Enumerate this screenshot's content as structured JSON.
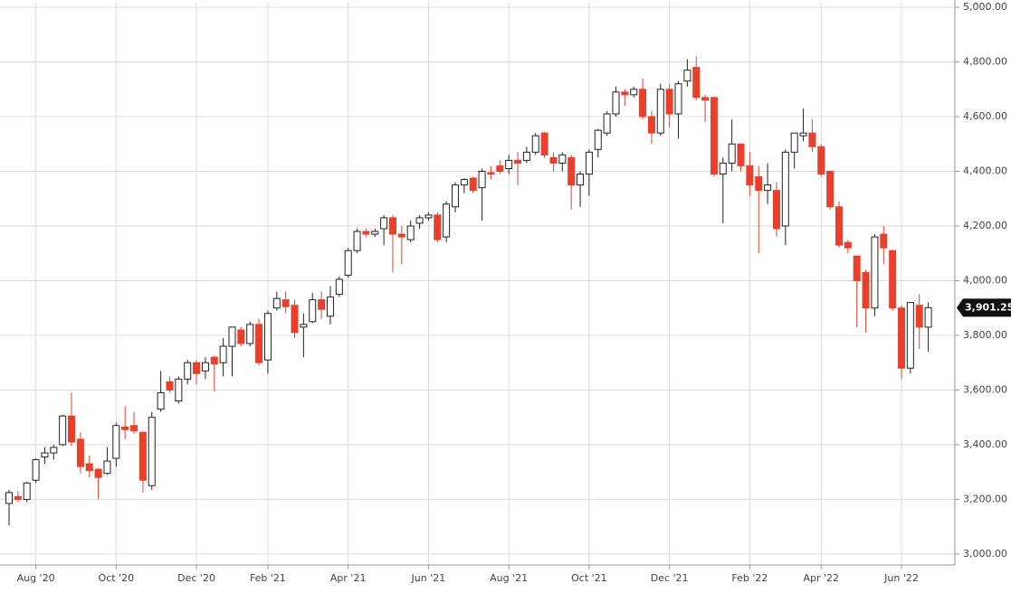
{
  "chart_data": {
    "type": "candlestick",
    "categories": [
      null,
      null,
      null,
      "Aug '20",
      null,
      null,
      null,
      null,
      null,
      null,
      null,
      null,
      "Oct '20",
      null,
      null,
      null,
      null,
      null,
      null,
      null,
      null,
      "Dec '20",
      null,
      null,
      null,
      null,
      null,
      null,
      null,
      "Feb '21",
      null,
      null,
      null,
      null,
      null,
      null,
      null,
      null,
      "Apr '21",
      null,
      null,
      null,
      null,
      null,
      null,
      null,
      null,
      "Jun '21",
      null,
      null,
      null,
      null,
      null,
      null,
      null,
      null,
      "Aug '21",
      null,
      null,
      null,
      null,
      null,
      null,
      null,
      null,
      "Oct '21",
      null,
      null,
      null,
      null,
      null,
      null,
      null,
      null,
      "Dec '21",
      null,
      null,
      null,
      null,
      null,
      null,
      null,
      null,
      "Feb '22",
      null,
      null,
      null,
      null,
      null,
      null,
      null,
      "Apr '22",
      null,
      null,
      null,
      null,
      null,
      null,
      null,
      null,
      "Jun '22",
      null,
      null,
      null
    ],
    "open": [
      3185,
      3210,
      3200,
      3270,
      3355,
      3370,
      3400,
      3505,
      3420,
      3330,
      3310,
      3295,
      3350,
      3465,
      3470,
      3445,
      3250,
      3530,
      3630,
      3560,
      3640,
      3700,
      3670,
      3720,
      3700,
      3760,
      3820,
      3770,
      3840,
      3710,
      3900,
      3930,
      3910,
      3830,
      3850,
      3930,
      3870,
      3950,
      4020,
      4110,
      4180,
      4170,
      4190,
      4230,
      4170,
      4150,
      4210,
      4230,
      4240,
      4160,
      4270,
      4350,
      4375,
      4340,
      4395,
      4420,
      4410,
      4440,
      4440,
      4470,
      4540,
      4450,
      4430,
      4450,
      4350,
      4390,
      4480,
      4540,
      4610,
      4690,
      4680,
      4700,
      4600,
      4540,
      4700,
      4610,
      4730,
      4780,
      4670,
      4670,
      4390,
      4430,
      4500,
      4420,
      4380,
      4330,
      4330,
      4200,
      4470,
      4530,
      4540,
      4490,
      4400,
      4270,
      4140,
      4090,
      4030,
      3900,
      4170,
      4110,
      3900,
      3680,
      3910,
      3830
    ],
    "high": [
      3235,
      3230,
      3265,
      3350,
      3390,
      3400,
      3510,
      3590,
      3445,
      3360,
      3315,
      3390,
      3480,
      3540,
      3520,
      3450,
      3520,
      3670,
      3650,
      3650,
      3710,
      3710,
      3720,
      3725,
      3790,
      3830,
      3830,
      3850,
      3860,
      3890,
      3960,
      3960,
      3930,
      3880,
      3955,
      3960,
      3980,
      4015,
      4120,
      4190,
      4190,
      4190,
      4240,
      4240,
      4200,
      4220,
      4240,
      4250,
      4250,
      4290,
      4360,
      4375,
      4380,
      4410,
      4420,
      4440,
      4460,
      4470,
      4490,
      4540,
      4545,
      4470,
      4470,
      4460,
      4400,
      4480,
      4555,
      4620,
      4710,
      4700,
      4710,
      4740,
      4620,
      4720,
      4720,
      4730,
      4810,
      4820,
      4680,
      4670,
      4450,
      4590,
      4500,
      4470,
      4420,
      4430,
      4360,
      4480,
      4540,
      4630,
      4590,
      4500,
      4400,
      4290,
      4150,
      4090,
      4040,
      4170,
      4200,
      4110,
      3910,
      3920,
      3950,
      3920
    ],
    "low": [
      3105,
      3190,
      3190,
      3260,
      3330,
      3345,
      3395,
      3395,
      3295,
      3280,
      3200,
      3290,
      3320,
      3420,
      3440,
      3225,
      3235,
      3520,
      3590,
      3550,
      3620,
      3620,
      3640,
      3595,
      3650,
      3650,
      3760,
      3760,
      3690,
      3660,
      3890,
      3880,
      3790,
      3720,
      3845,
      3860,
      3840,
      3940,
      4010,
      4100,
      4160,
      4160,
      4130,
      4030,
      4060,
      4140,
      4190,
      4220,
      4140,
      4140,
      4250,
      4320,
      4320,
      4220,
      4370,
      4390,
      4390,
      4350,
      4430,
      4460,
      4450,
      4400,
      4400,
      4260,
      4270,
      4310,
      4450,
      4530,
      4600,
      4640,
      4670,
      4590,
      4500,
      4530,
      4560,
      4520,
      4710,
      4660,
      4580,
      4380,
      4210,
      4400,
      4400,
      4310,
      4100,
      4280,
      4160,
      4130,
      4410,
      4510,
      4470,
      4380,
      4260,
      4120,
      4100,
      3830,
      3810,
      3870,
      4060,
      3890,
      3640,
      3660,
      3750,
      3740
    ],
    "close": [
      3225,
      3200,
      3260,
      3345,
      3370,
      3390,
      3505,
      3410,
      3320,
      3305,
      3280,
      3340,
      3470,
      3455,
      3450,
      3270,
      3500,
      3590,
      3600,
      3640,
      3700,
      3660,
      3700,
      3695,
      3760,
      3830,
      3770,
      3840,
      3700,
      3880,
      3935,
      3905,
      3810,
      3840,
      3930,
      3895,
      3940,
      4005,
      4110,
      4180,
      4170,
      4180,
      4230,
      4170,
      4160,
      4200,
      4230,
      4240,
      4150,
      4280,
      4350,
      4370,
      4330,
      4400,
      4390,
      4400,
      4440,
      4430,
      4470,
      4530,
      4460,
      4430,
      4460,
      4350,
      4390,
      4470,
      4550,
      4610,
      4690,
      4680,
      4700,
      4600,
      4540,
      4700,
      4610,
      4720,
      4770,
      4670,
      4660,
      4390,
      4430,
      4500,
      4420,
      4350,
      4330,
      4350,
      4190,
      4470,
      4540,
      4540,
      4490,
      4390,
      4270,
      4130,
      4120,
      4000,
      3900,
      4160,
      4120,
      3900,
      3680,
      3920,
      3830,
      3901.25
    ],
    "up_color": "#ffffff",
    "down_color": "#e8402a",
    "ylim": [
      2960,
      5020
    ],
    "yticks": [
      {
        "value": 3000,
        "label": "3,000.00"
      },
      {
        "value": 3200,
        "label": "3,200.00"
      },
      {
        "value": 3400,
        "label": "3,400.00"
      },
      {
        "value": 3600,
        "label": "3,600.00"
      },
      {
        "value": 3800,
        "label": "3,800.00"
      },
      {
        "value": 4000,
        "label": "4,000.00"
      },
      {
        "value": 4200,
        "label": "4,200.00"
      },
      {
        "value": 4400,
        "label": "4,400.00"
      },
      {
        "value": 4600,
        "label": "4,600.00"
      },
      {
        "value": 4800,
        "label": "4,800.00"
      },
      {
        "value": 5000,
        "label": "5,000.00"
      }
    ],
    "last_price": {
      "value": 3901.25,
      "label": "3,901.25"
    },
    "grid": true
  }
}
